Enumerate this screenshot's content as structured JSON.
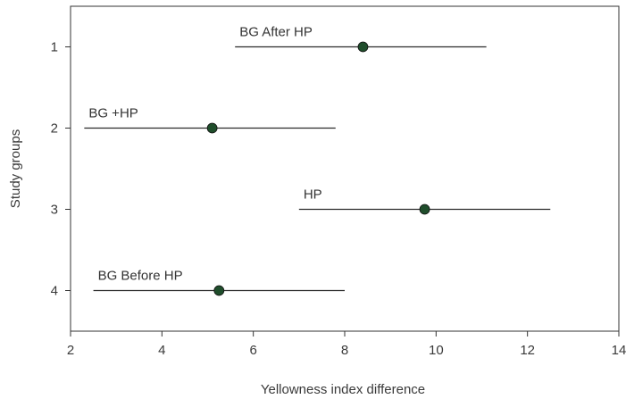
{
  "chart_data": {
    "type": "scatter",
    "xlabel": "Yellowness index difference",
    "ylabel": "Study groups",
    "xlim": [
      2,
      14
    ],
    "ylim": [
      0.5,
      4.5
    ],
    "y_inverted": true,
    "x_ticks": [
      2,
      4,
      6,
      8,
      10,
      12,
      14
    ],
    "y_ticks": [
      1,
      2,
      3,
      4
    ],
    "grid": false,
    "points": [
      {
        "group": 1,
        "label": "BG After HP",
        "mean": 8.4,
        "lower": 5.6,
        "upper": 11.1
      },
      {
        "group": 2,
        "label": "BG +HP",
        "mean": 5.1,
        "lower": 2.3,
        "upper": 7.8
      },
      {
        "group": 3,
        "label": "HP",
        "mean": 9.75,
        "lower": 7.0,
        "upper": 12.5
      },
      {
        "group": 4,
        "label": "BG Before HP",
        "mean": 5.25,
        "lower": 2.5,
        "upper": 8.0
      }
    ],
    "colors": {
      "marker": "#1f4d2b",
      "line": "#2b2b2b",
      "axis": "#333333"
    }
  }
}
